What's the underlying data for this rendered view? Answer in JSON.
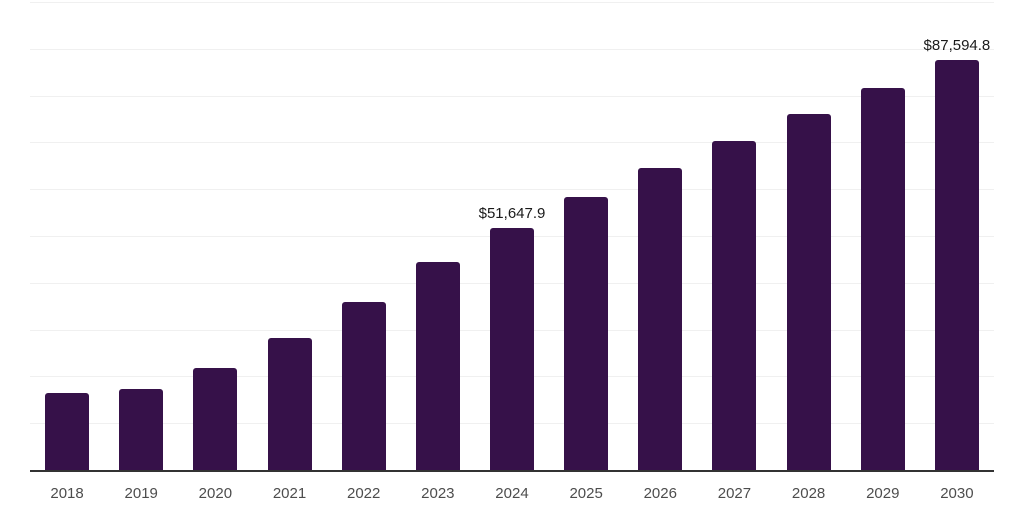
{
  "chart_data": {
    "type": "bar",
    "title": "",
    "xlabel": "",
    "ylabel": "",
    "categories": [
      "2018",
      "2019",
      "2020",
      "2021",
      "2022",
      "2023",
      "2024",
      "2025",
      "2026",
      "2027",
      "2028",
      "2029",
      "2030"
    ],
    "values": [
      16400,
      17300,
      21800,
      28200,
      35900,
      44400,
      51647.9,
      58300,
      64500,
      70400,
      76000,
      81700,
      87594.8
    ],
    "data_labels": [
      "",
      "",
      "",
      "",
      "",
      "",
      "$51,647.9",
      "",
      "",
      "",
      "",
      "",
      "$87,594.8"
    ],
    "ylim": [
      0,
      100000
    ],
    "gridline_step": 10000,
    "grid_on": true,
    "legend": "none",
    "colors": {
      "bar": "#361149",
      "grid": "#f0f0f0",
      "axis": "#333333",
      "tick_label": "#4d4d4d",
      "data_label": "#1a1a1a",
      "background": "#ffffff"
    }
  }
}
